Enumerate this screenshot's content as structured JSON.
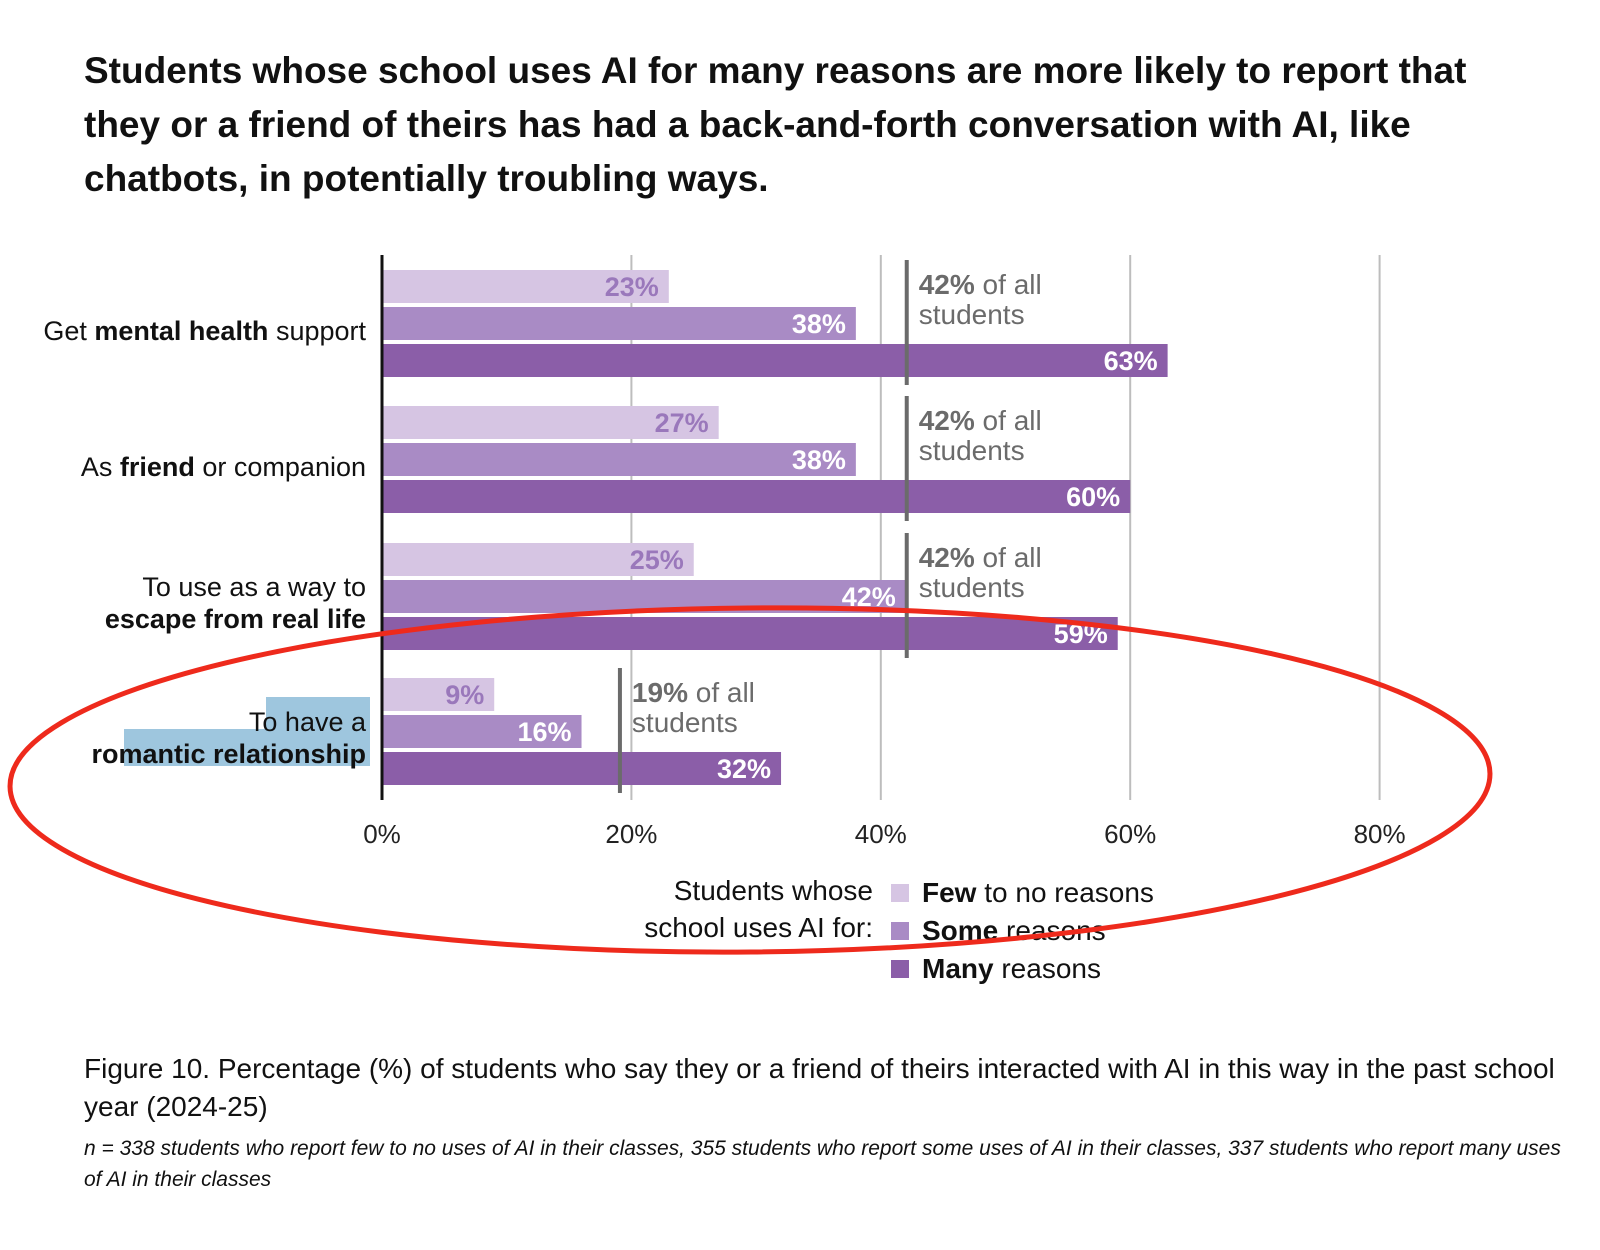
{
  "title": "Students whose school uses AI for many reasons are more likely to report that they or a friend of theirs has had a back-and-forth conversation with AI, like chatbots, in potentially troubling ways.",
  "caption": "Figure 10. Percentage (%) of students who say they or a friend of theirs interacted with AI in this way in the past school year (2024-25)",
  "note": "n = 338 students who report few to no uses of AI in their classes, 355 students who report some uses of AI in their classes, 337 students who report many uses of AI in their classes",
  "colors": {
    "few": "#d6c5e3",
    "some": "#a98bc5",
    "many": "#8b5ea8",
    "few_label": "#9a78bb",
    "reference": "#6b6b6b",
    "grid": "#bdbdbd",
    "highlight": "#9ec6de",
    "annotation": "#ee2a1c"
  },
  "chart_data": {
    "type": "bar",
    "orientation": "horizontal",
    "xlim": [
      0,
      80
    ],
    "x_ticks": [
      0,
      20,
      40,
      60,
      80
    ],
    "x_tick_labels": [
      "0%",
      "20%",
      "40%",
      "60%",
      "80%"
    ],
    "grid": true,
    "categories": [
      {
        "lines": [
          [
            "Get ",
            false
          ],
          [
            "mental health",
            true
          ],
          [
            " support",
            false
          ]
        ]
      },
      {
        "lines": [
          [
            "As ",
            false
          ],
          [
            "friend",
            true
          ],
          [
            " or companion",
            false
          ]
        ]
      },
      {
        "lines": [
          [
            "To use as a way to",
            false
          ]
        ],
        "line2": [
          [
            "escape from real life",
            true
          ]
        ]
      },
      {
        "lines": [
          [
            "To have a",
            false
          ]
        ],
        "line2": [
          [
            "romantic relationship",
            true
          ]
        ],
        "highlighted": true
      }
    ],
    "category_text": [
      "Get mental health support",
      "As friend or companion",
      "To use as a way to escape from real life",
      "To have a romantic relationship"
    ],
    "series": [
      {
        "key": "few",
        "values": [
          23,
          27,
          25,
          9
        ],
        "labels": [
          "23%",
          "27%",
          "25%",
          "9%"
        ]
      },
      {
        "key": "some",
        "values": [
          38,
          38,
          42,
          16
        ],
        "labels": [
          "38%",
          "38%",
          "42%",
          "16%"
        ]
      },
      {
        "key": "many",
        "values": [
          63,
          60,
          59,
          32
        ],
        "labels": [
          "63%",
          "60%",
          "59%",
          "32%"
        ]
      }
    ],
    "reference_lines": [
      {
        "value": 42,
        "bold": "42%",
        "rest": " of all",
        "line2": "students"
      },
      {
        "value": 42,
        "bold": "42%",
        "rest": " of all",
        "line2": "students"
      },
      {
        "value": 42,
        "bold": "42%",
        "rest": " of all",
        "line2": "students"
      },
      {
        "value": 19,
        "bold": "19%",
        "rest": " of all",
        "line2": "students"
      }
    ],
    "legend": {
      "placement": "bottom-center",
      "title_line1": "Students whose",
      "title_line2": "school uses AI for:",
      "items": [
        {
          "key": "few",
          "bold": "Few",
          "rest": " to no reasons"
        },
        {
          "key": "some",
          "bold": "Some",
          "rest": " reasons"
        },
        {
          "key": "many",
          "bold": "Many",
          "rest": " reasons"
        }
      ]
    },
    "annotation": "red ellipse circling the romantic relationship row"
  }
}
